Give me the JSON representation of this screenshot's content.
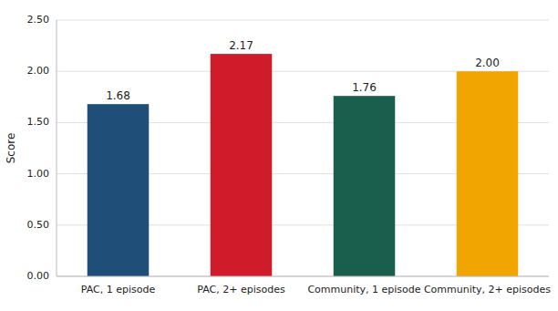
{
  "chart_data": {
    "type": "bar",
    "ylabel": "Score",
    "categories": [
      "PAC, 1 episode",
      "PAC, 2+ episodes",
      "Community, 1 episode",
      "Community, 2+ episodes"
    ],
    "values": [
      1.68,
      2.17,
      1.76,
      2.0
    ],
    "value_labels": [
      "1.68",
      "2.17",
      "1.76",
      "2.00"
    ],
    "colors": [
      "#1f4e79",
      "#d01c2a",
      "#1a5e4e",
      "#f0a500"
    ],
    "ylim": [
      0,
      2.5
    ],
    "yticks": [
      {
        "value": 0.0,
        "label": "0.00"
      },
      {
        "value": 0.5,
        "label": "0.50"
      },
      {
        "value": 1.0,
        "label": "1.00"
      },
      {
        "value": 1.5,
        "label": "1.50"
      },
      {
        "value": 2.0,
        "label": "2.00"
      },
      {
        "value": 2.5,
        "label": "2.50"
      }
    ],
    "grid": true,
    "data_labels": true
  }
}
